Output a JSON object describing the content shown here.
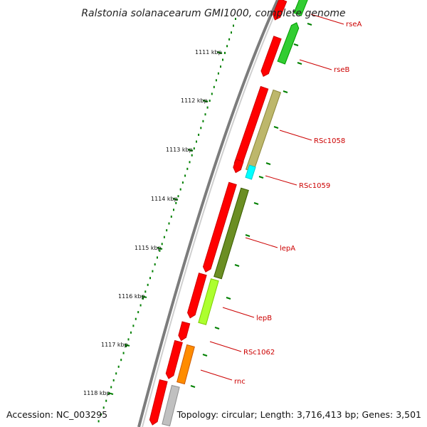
{
  "title": "Ralstonia solanacearum GMI1000, complete genome",
  "footer": {
    "accession": "Accession: NC_003295",
    "summary": "Topology: circular; Length: 3,716,413 bp; Genes: 3,501"
  },
  "ticks": [
    {
      "kbp": 1111,
      "label": "1111 kbp"
    },
    {
      "kbp": 1112,
      "label": "1112 kbp"
    },
    {
      "kbp": 1113,
      "label": "1113 kbp"
    },
    {
      "kbp": 1114,
      "label": "1114 kbp"
    },
    {
      "kbp": 1115,
      "label": "1115 kbp"
    },
    {
      "kbp": 1116,
      "label": "1116 kbp"
    },
    {
      "kbp": 1117,
      "label": "1117 kbp"
    },
    {
      "kbp": 1118,
      "label": "1118 kbp"
    }
  ],
  "labeled_genes": [
    {
      "name": "rseA",
      "color": "#32cd32"
    },
    {
      "name": "rseB",
      "color": "#32cd32"
    },
    {
      "name": "RSc1058",
      "color": "#bdb76b"
    },
    {
      "name": "RSc1059",
      "color": "#00ffff"
    },
    {
      "name": "lepA",
      "color": "#6b8e23"
    },
    {
      "name": "lepB",
      "color": "#adff2f"
    },
    {
      "name": "RSc1062",
      "color": "#ff0000"
    },
    {
      "name": "rnc",
      "color": "#ff8c00"
    }
  ],
  "colors": {
    "backbone": "#808080",
    "outer_track": "#ff0000",
    "tick_dots": "#008000",
    "label_color": "#cc0000",
    "unlabeled_gene": "#c0c0c0"
  }
}
